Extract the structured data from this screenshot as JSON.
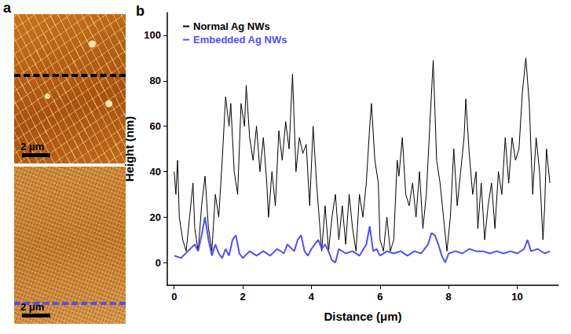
{
  "panel_a": {
    "label": "a",
    "images": [
      {
        "scale_bar": "2 μm",
        "line_color": "#000000"
      },
      {
        "scale_bar": "2 μm",
        "line_color": "#5050f0"
      }
    ]
  },
  "chart_data": {
    "type": "line",
    "panel_label": "b",
    "x_label": "Distance (μm)",
    "y_label": "Height (nm)",
    "xlim": [
      -0.2,
      11.2
    ],
    "xticks": [
      0,
      2,
      4,
      6,
      8,
      10
    ],
    "ylim": [
      -10,
      110
    ],
    "yticks": [
      0,
      20,
      40,
      60,
      80,
      100
    ],
    "grid": false,
    "legend": "upper left",
    "series": [
      {
        "name": "Normal Ag NWs",
        "color": "#000000",
        "x": [
          0.0,
          0.05,
          0.1,
          0.15,
          0.25,
          0.35,
          0.45,
          0.55,
          0.6,
          0.7,
          0.8,
          0.9,
          1.0,
          1.1,
          1.2,
          1.3,
          1.4,
          1.5,
          1.6,
          1.65,
          1.75,
          1.85,
          1.95,
          2.05,
          2.1,
          2.2,
          2.3,
          2.4,
          2.5,
          2.6,
          2.7,
          2.75,
          2.85,
          2.95,
          3.05,
          3.15,
          3.25,
          3.35,
          3.45,
          3.55,
          3.65,
          3.75,
          3.85,
          3.95,
          4.05,
          4.15,
          4.25,
          4.3,
          4.4,
          4.5,
          4.6,
          4.7,
          4.8,
          4.9,
          5.0,
          5.1,
          5.2,
          5.3,
          5.4,
          5.5,
          5.6,
          5.7,
          5.75,
          5.85,
          5.95,
          6.0,
          6.1,
          6.2,
          6.3,
          6.4,
          6.5,
          6.55,
          6.65,
          6.75,
          6.85,
          6.95,
          7.05,
          7.15,
          7.25,
          7.35,
          7.45,
          7.55,
          7.65,
          7.75,
          7.85,
          7.95,
          8.05,
          8.15,
          8.25,
          8.35,
          8.45,
          8.5,
          8.6,
          8.7,
          8.8,
          8.85,
          8.95,
          9.05,
          9.15,
          9.25,
          9.35,
          9.45,
          9.55,
          9.65,
          9.75,
          9.85,
          9.95,
          10.05,
          10.15,
          10.25,
          10.35,
          10.45,
          10.55,
          10.65,
          10.75,
          10.8,
          10.85,
          10.95
        ],
        "values": [
          40,
          30,
          45,
          20,
          10,
          5,
          20,
          35,
          15,
          5,
          25,
          38,
          15,
          5,
          30,
          20,
          45,
          73,
          60,
          70,
          40,
          30,
          70,
          60,
          78,
          55,
          45,
          60,
          40,
          55,
          35,
          20,
          40,
          25,
          58,
          45,
          62,
          50,
          83,
          40,
          55,
          48,
          52,
          25,
          60,
          35,
          15,
          5,
          25,
          5,
          20,
          30,
          10,
          25,
          8,
          30,
          15,
          5,
          30,
          20,
          35,
          60,
          70,
          45,
          35,
          10,
          5,
          20,
          5,
          10,
          45,
          38,
          55,
          30,
          25,
          35,
          20,
          40,
          15,
          30,
          60,
          89,
          45,
          35,
          20,
          5,
          20,
          50,
          25,
          40,
          55,
          72,
          48,
          30,
          40,
          15,
          35,
          10,
          25,
          35,
          15,
          40,
          30,
          55,
          35,
          55,
          45,
          50,
          75,
          90,
          70,
          30,
          55,
          40,
          10,
          25,
          50,
          35
        ]
      },
      {
        "name": "Embedded Ag NWs",
        "color": "#5050f0",
        "x": [
          0.0,
          0.2,
          0.4,
          0.6,
          0.7,
          0.8,
          0.9,
          1.0,
          1.1,
          1.2,
          1.3,
          1.4,
          1.5,
          1.6,
          1.7,
          1.8,
          1.9,
          2.0,
          2.2,
          2.4,
          2.6,
          2.8,
          3.0,
          3.2,
          3.3,
          3.5,
          3.6,
          3.7,
          3.8,
          3.9,
          4.0,
          4.2,
          4.3,
          4.4,
          4.5,
          4.6,
          4.7,
          4.8,
          5.0,
          5.2,
          5.4,
          5.6,
          5.7,
          5.8,
          5.9,
          6.0,
          6.2,
          6.4,
          6.6,
          6.8,
          7.0,
          7.2,
          7.4,
          7.5,
          7.6,
          7.7,
          7.8,
          7.9,
          8.0,
          8.2,
          8.4,
          8.6,
          8.8,
          9.0,
          9.2,
          9.4,
          9.6,
          9.8,
          10.0,
          10.2,
          10.3,
          10.4,
          10.6,
          10.8,
          10.95
        ],
        "values": [
          3,
          2,
          5,
          8,
          5,
          12,
          20,
          10,
          3,
          8,
          4,
          2,
          6,
          3,
          10,
          12,
          4,
          2,
          5,
          3,
          5,
          3,
          6,
          4,
          8,
          5,
          10,
          12,
          5,
          3,
          6,
          10,
          6,
          8,
          5,
          1,
          0,
          6,
          4,
          5,
          3,
          8,
          16,
          5,
          6,
          3,
          5,
          4,
          5,
          3,
          5,
          4,
          8,
          13,
          12,
          8,
          3,
          0,
          4,
          5,
          4,
          6,
          5,
          5,
          4,
          5,
          4,
          5,
          4,
          6,
          10,
          5,
          6,
          4,
          5
        ]
      }
    ]
  }
}
